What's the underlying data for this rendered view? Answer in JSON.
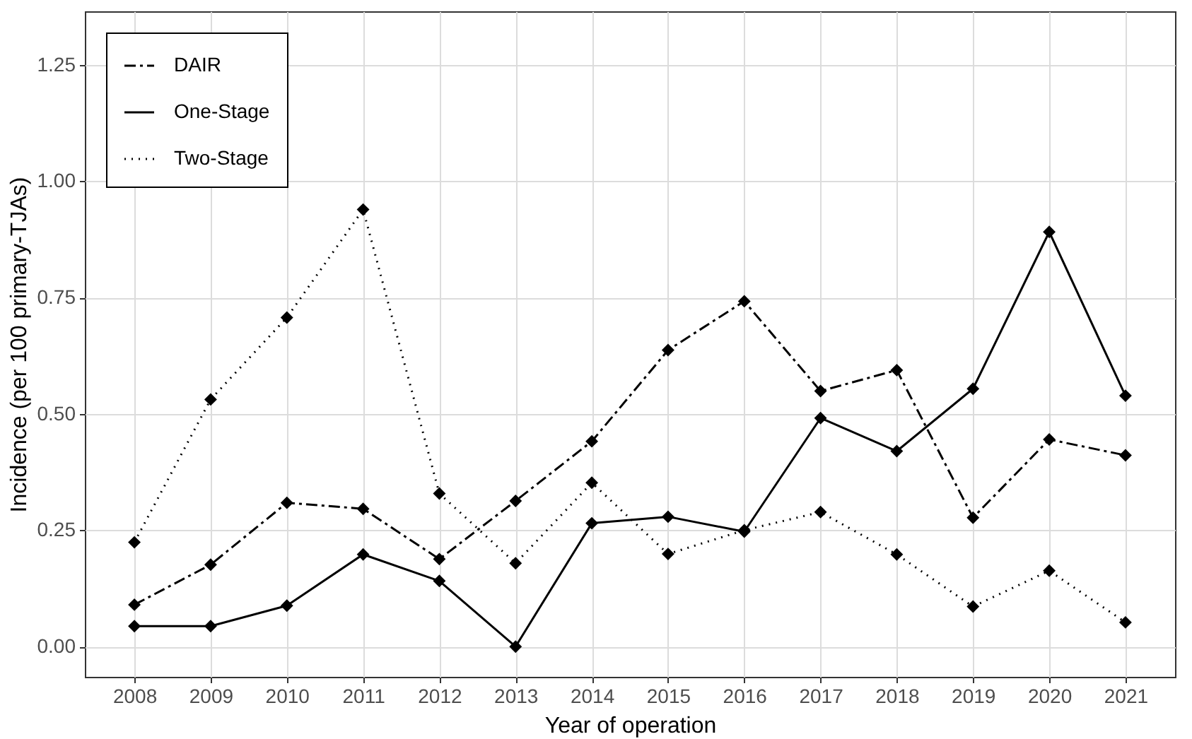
{
  "chart_data": {
    "type": "line",
    "xlabel": "Year of operation",
    "ylabel": "Incidence (per 100 primary-TJAs)",
    "x": [
      2008,
      2009,
      2010,
      2011,
      2012,
      2013,
      2014,
      2015,
      2016,
      2017,
      2018,
      2019,
      2020,
      2021
    ],
    "xlim": [
      2007.35,
      2021.65
    ],
    "xticks": [
      2008,
      2009,
      2010,
      2011,
      2012,
      2013,
      2014,
      2015,
      2016,
      2017,
      2018,
      2019,
      2020,
      2021
    ],
    "ylim": [
      -0.065,
      1.365
    ],
    "yticks": [
      {
        "value": 0,
        "label": "0.00"
      },
      0.25,
      {
        "value": 0.5,
        "label": "0.50"
      },
      0.75,
      {
        "value": 1,
        "label": "1.00"
      },
      1.25
    ],
    "grid": true,
    "legend": "top left",
    "marker": "diamond",
    "series": [
      {
        "name": "DAIR",
        "color": "#000000",
        "line_style": "dashdot",
        "values": [
          0.09,
          0.176,
          0.309,
          0.296,
          0.188,
          0.313,
          0.441,
          0.637,
          0.742,
          0.549,
          0.594,
          0.277,
          0.445,
          0.411
        ]
      },
      {
        "name": "One-Stage",
        "color": "#000000",
        "line_style": "solid",
        "values": [
          0.044,
          0.044,
          0.088,
          0.198,
          0.141,
          0.0,
          0.265,
          0.279,
          0.247,
          0.491,
          0.42,
          0.554,
          0.891,
          0.539
        ]
      },
      {
        "name": "Two-Stage",
        "color": "#000000",
        "line_style": "dotted",
        "values": [
          0.224,
          0.531,
          0.707,
          0.939,
          0.329,
          0.179,
          0.352,
          0.199,
          0.25,
          0.289,
          0.198,
          0.086,
          0.163,
          0.052
        ]
      }
    ]
  }
}
